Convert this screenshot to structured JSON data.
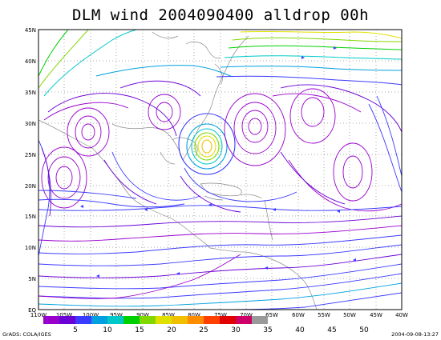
{
  "title": "DLM wind 2004090400 alldrop 00h",
  "lat_labels": [
    "45N",
    "40N",
    "35N",
    "30N",
    "25N",
    "20N",
    "15N",
    "10N",
    "5N",
    "EQ"
  ],
  "lon_labels": [
    "110W",
    "105W",
    "100W",
    "95W",
    "90W",
    "85W",
    "80W",
    "75W",
    "70W",
    "65W",
    "60W",
    "55W",
    "50W",
    "45W",
    "40W"
  ],
  "colorbar": {
    "colors": [
      "#9900cc",
      "#6a00d6",
      "#3b3bff",
      "#00a0e0",
      "#00c8c8",
      "#00d000",
      "#80d800",
      "#e0e000",
      "#f0c000",
      "#ff8c00",
      "#ff4000",
      "#e00000",
      "#cc0066",
      "#999999"
    ],
    "labels": [
      "5",
      "10",
      "15",
      "20",
      "25",
      "30",
      "35",
      "40",
      "45",
      "50"
    ]
  },
  "footer": {
    "left": "GrADS: COLA/IGES",
    "right": "2004-09-08-13:27"
  }
}
